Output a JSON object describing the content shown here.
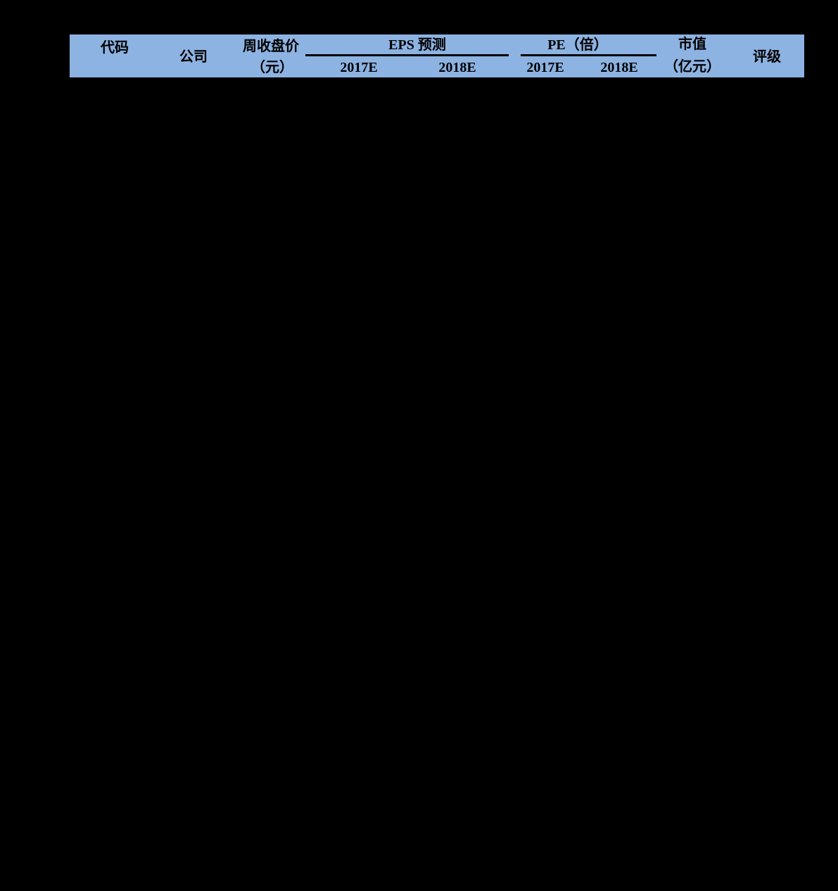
{
  "page": {
    "background": "#000000"
  },
  "table_header": {
    "colors": {
      "header-bg": "#8db3e2",
      "border": "#000000",
      "text": "#000000"
    },
    "code": "代码",
    "company": "公司",
    "weekly_close": {
      "line1": "周收盘价",
      "line2": "（元）"
    },
    "eps": {
      "group": "EPS 预测",
      "y2017": "2017E",
      "y2018": "2018E"
    },
    "pe": {
      "group": "PE（倍）",
      "y2017": "2017E",
      "y2018": "2018E"
    },
    "market_cap": {
      "line1": "市值",
      "line2": "（亿元）"
    },
    "rating": "评级"
  }
}
